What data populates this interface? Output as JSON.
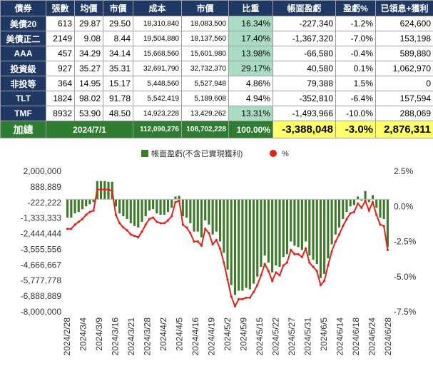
{
  "table": {
    "headers": [
      "債券",
      "張數",
      "均價",
      "市價",
      "成本",
      "市價",
      "比重",
      "帳面盈虧",
      "盈虧%",
      "已領息+獲利"
    ],
    "rows": [
      {
        "name": "美債20",
        "qty": "613",
        "avg": "29.87",
        "price": "29.50",
        "cost": "18,310,840",
        "mv": "18,083,500",
        "weight": "16.34%",
        "pnl": "-227,340",
        "pct": "-1.2%",
        "div": "624,600",
        "hl": true
      },
      {
        "name": "美債正二",
        "qty": "2149",
        "avg": "9.08",
        "price": "8.44",
        "cost": "19,504,880",
        "mv": "18,137,560",
        "weight": "17.40%",
        "pnl": "-1,367,320",
        "pct": "-7.0%",
        "div": "153,198",
        "hl": true
      },
      {
        "name": "AAA",
        "qty": "457",
        "avg": "34.29",
        "price": "34.14",
        "cost": "15,668,560",
        "mv": "15,601,980",
        "weight": "13.98%",
        "pnl": "-66,580",
        "pct": "-0.4%",
        "div": "589,880",
        "hl": true
      },
      {
        "name": "投資級",
        "qty": "927",
        "avg": "35.27",
        "price": "35.31",
        "cost": "32,691,790",
        "mv": "32,732,370",
        "weight": "29.17%",
        "pnl": "40,580",
        "pct": "0.1%",
        "div": "1,062,970",
        "hl": true
      },
      {
        "name": "非投等",
        "qty": "364",
        "avg": "14.95",
        "price": "15.17",
        "cost": "5,448,560",
        "mv": "5,527,948",
        "weight": "4.86%",
        "pnl": "79,388",
        "pct": "1.5%",
        "div": "0",
        "hl": false
      },
      {
        "name": "TLT",
        "qty": "1824",
        "avg": "98.02",
        "price": "91.78",
        "cost": "5,542,419",
        "mv": "5,189,608",
        "weight": "4.94%",
        "pnl": "-352,810",
        "pct": "-6.4%",
        "div": "157,594",
        "hl": false
      },
      {
        "name": "TMF",
        "qty": "8932",
        "avg": "53.90",
        "price": "48.50",
        "cost": "14,923,228",
        "mv": "13,429,262",
        "weight": "13.31%",
        "pnl": "-1,493,966",
        "pct": "-10.0%",
        "div": "288,069",
        "hl": true
      }
    ],
    "total": {
      "label": "加總",
      "date": "2024/7/1",
      "cost": "112,090,276",
      "mv": "108,702,228",
      "weight": "100.00%",
      "pnl": "-3,388,048",
      "pct": "-3.0%",
      "div": "2,876,311"
    }
  },
  "colors": {
    "bar": "#3d7a2a",
    "line": "#e8201a",
    "header": "#1f3864",
    "highlight": "#a9dcc2",
    "total": "#2e7d32",
    "yellow": "#ffff66"
  },
  "chart_data": {
    "type": "bar",
    "legend": [
      "帳面盈虧(不含已實現獲利)",
      "%"
    ],
    "y_left": {
      "ticks": [
        "2,000,000",
        "888,889",
        "-222,222",
        "-1,333,333",
        "-2,444,444",
        "-3,555,556",
        "-4,666,667",
        "-5,777,778",
        "-6,888,889",
        "-8,000,000"
      ],
      "range": [
        -8000000,
        2000000
      ]
    },
    "y_right": {
      "ticks": [
        "2.5%",
        "0.0%",
        "-2.5%",
        "-5.0%",
        "-7.5%"
      ],
      "range": [
        -7.5,
        2.5
      ]
    },
    "x_ticks": [
      "2024/2/28",
      "2024/3/4",
      "2024/3/9",
      "2024/3/16",
      "2024/3/21",
      "2024/3/28",
      "2024/4/2",
      "2024/4/5",
      "2024/4/16",
      "2024/4/19",
      "2024/5/2",
      "2024/5/9",
      "2024/5/15",
      "2024/5/22",
      "2024/5/27",
      "2024/5/31",
      "2024/6/5",
      "2024/6/14",
      "2024/6/18",
      "2024/6/24",
      "2024/6/28"
    ],
    "bars": [
      -1300000,
      -1300000,
      -1000000,
      -900000,
      -700000,
      -500000,
      -350000,
      -200000,
      1300000,
      1300000,
      1300000,
      1250000,
      1250000,
      -500000,
      -1000000,
      -1200000,
      -1400000,
      -1700000,
      -1900000,
      -2000000,
      -1600000,
      -1200000,
      -800000,
      -700000,
      -1000000,
      -1100000,
      -1100000,
      -900000,
      -600000,
      200000,
      250000,
      -1200000,
      -1300000,
      -1700000,
      -2300000,
      -2300000,
      -2700000,
      -1500000,
      -1800000,
      -2500000,
      -2300000,
      -3000000,
      -3800000,
      -5000000,
      -6100000,
      -6800000,
      -6500000,
      -6500000,
      -6300000,
      -6400000,
      -6000000,
      -5500000,
      -4800000,
      -4000000,
      -4500000,
      -5200000,
      -4700000,
      -4800000,
      -4100000,
      -3900000,
      -3000000,
      -3300000,
      -3400000,
      -3600000,
      -3000000,
      -4000000,
      -4300000,
      -4600000,
      -5600000,
      -5300000,
      -4200000,
      -3200000,
      -2500000,
      -2000000,
      -1400000,
      -900000,
      -500000,
      -400000,
      200000,
      -100000,
      600000,
      -200000,
      300000,
      -600000,
      -1300000,
      -1400000,
      -3400000
    ],
    "pct": [
      -1.6,
      -1.6,
      -1.3,
      -1.1,
      -0.9,
      -0.6,
      -0.4,
      -0.3,
      1.2,
      1.2,
      1.2,
      1.2,
      1.1,
      -0.6,
      -1.2,
      -1.5,
      -1.7,
      -2.0,
      -2.1,
      -2.2,
      -1.8,
      -1.3,
      -0.9,
      -0.8,
      -1.1,
      -1.2,
      -1.2,
      -1.0,
      -0.7,
      0.3,
      0.4,
      -1.3,
      -1.5,
      -1.9,
      -2.5,
      -2.5,
      -2.8,
      -1.6,
      -1.9,
      -2.7,
      -2.4,
      -3.0,
      -4.0,
      -5.2,
      -6.4,
      -7.1,
      -6.6,
      -6.6,
      -6.5,
      -6.5,
      -6.1,
      -5.6,
      -4.9,
      -4.1,
      -4.6,
      -5.3,
      -4.7,
      -4.9,
      -4.2,
      -4.0,
      -3.1,
      -3.4,
      -3.4,
      -3.6,
      -3.0,
      -4.0,
      -4.3,
      -4.6,
      -5.6,
      -5.3,
      -4.2,
      -3.2,
      -2.5,
      -2.0,
      -1.4,
      -0.9,
      -0.5,
      -0.4,
      0.2,
      -0.1,
      0.4,
      -0.3,
      0.3,
      -0.6,
      -1.3,
      -1.4,
      -3.1
    ]
  }
}
